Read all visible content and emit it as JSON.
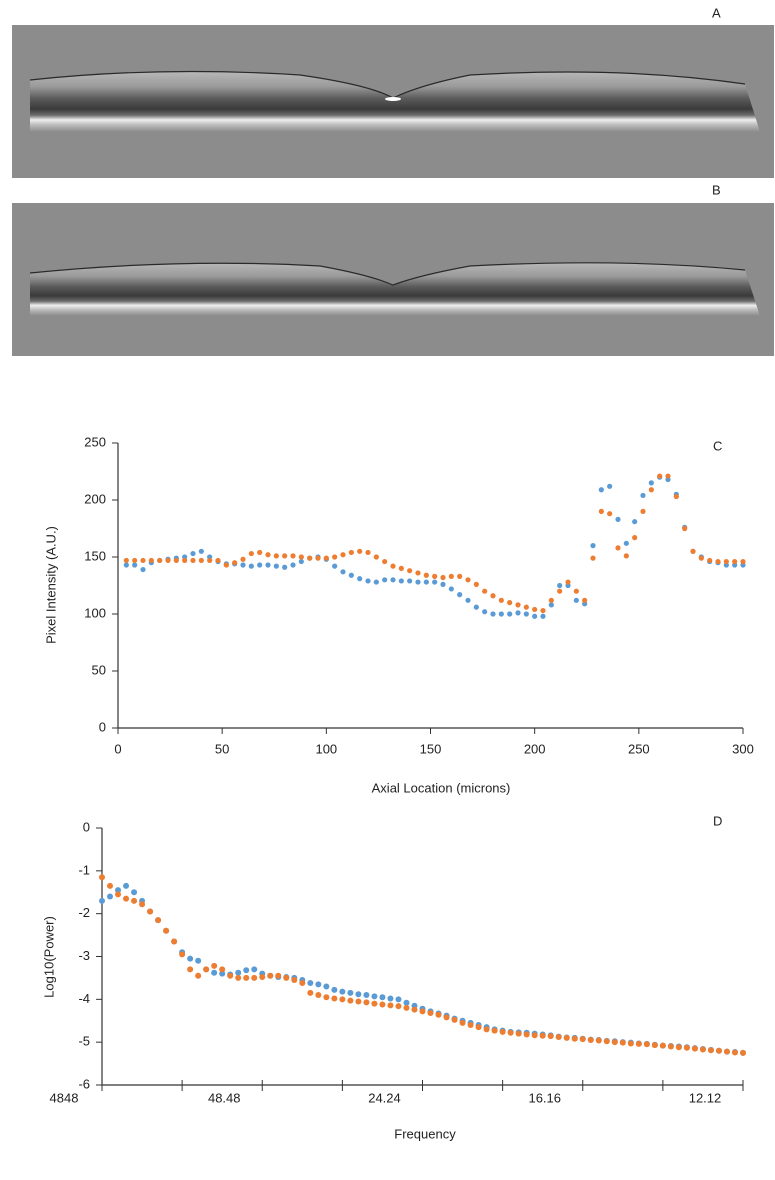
{
  "images": [
    {
      "label": "A"
    },
    {
      "label": "B"
    }
  ],
  "chart_data": [
    {
      "type": "scatter",
      "annotation": "C",
      "x_label": "Axial Location (microns)",
      "y_label": "Pixel Intensity (A.U.)",
      "xlim": [
        0,
        300
      ],
      "xticks": [
        0,
        50,
        100,
        150,
        200,
        250,
        300
      ],
      "ylim": [
        0,
        250
      ],
      "yticks": [
        0,
        50,
        100,
        150,
        200,
        250
      ],
      "x": [
        4,
        8,
        12,
        16,
        20,
        24,
        28,
        32,
        36,
        40,
        44,
        48,
        52,
        56,
        60,
        64,
        68,
        72,
        76,
        80,
        84,
        88,
        92,
        96,
        100,
        104,
        108,
        112,
        116,
        120,
        124,
        128,
        132,
        136,
        140,
        144,
        148,
        152,
        156,
        160,
        164,
        168,
        172,
        176,
        180,
        184,
        188,
        192,
        196,
        200,
        204,
        208,
        212,
        216,
        220,
        224,
        228,
        232,
        236,
        240,
        244,
        248,
        252,
        256,
        260,
        264,
        268,
        272,
        276,
        280,
        284,
        288,
        292,
        296,
        300
      ],
      "series": [
        {
          "color": "#5b9bd5",
          "values": [
            143,
            143,
            139,
            145,
            147,
            148,
            149,
            150,
            153,
            155,
            150,
            146,
            144,
            144,
            143,
            142,
            143,
            143,
            142,
            141,
            143,
            146,
            149,
            150,
            148,
            142,
            137,
            134,
            131,
            129,
            128,
            130,
            130,
            129,
            129,
            128,
            128,
            128,
            126,
            122,
            117,
            112,
            106,
            102,
            100,
            100,
            100,
            101,
            100,
            98,
            98,
            108,
            125,
            125,
            112,
            109,
            160,
            209,
            212,
            183,
            162,
            181,
            204,
            215,
            220,
            218,
            205,
            176,
            155,
            150,
            146,
            145,
            143,
            143,
            143
          ]
        },
        {
          "color": "#ed7d31",
          "values": [
            147,
            147,
            147,
            147,
            147,
            147,
            147,
            147,
            147,
            147,
            147,
            147,
            143,
            145,
            148,
            153,
            154,
            152,
            151,
            151,
            151,
            150,
            149,
            149,
            149,
            150,
            152,
            154,
            155,
            154,
            150,
            146,
            142,
            140,
            138,
            136,
            134,
            133,
            132,
            133,
            133,
            130,
            126,
            120,
            116,
            112,
            110,
            108,
            106,
            104,
            103,
            112,
            120,
            128,
            120,
            112,
            149,
            190,
            188,
            158,
            151,
            167,
            190,
            209,
            221,
            221,
            203,
            175,
            155,
            149,
            147,
            146,
            146,
            146,
            146
          ]
        }
      ]
    },
    {
      "type": "scatter",
      "annotation": "D",
      "x_label": "Frequency",
      "y_label": "Log10(Power)",
      "xlim": [
        0,
        400
      ],
      "xticks": [
        {
          "value": 0,
          "label": "4848"
        },
        {
          "value": 50,
          "label": null
        },
        {
          "value": 100,
          "label": "48.48"
        },
        {
          "value": 150,
          "label": null
        },
        {
          "value": 200,
          "label": "24.24"
        },
        {
          "value": 250,
          "label": null
        },
        {
          "value": 300,
          "label": "16.16"
        },
        {
          "value": 350,
          "label": null
        },
        {
          "value": 400,
          "label": "12.12"
        }
      ],
      "ylim": [
        -6,
        0
      ],
      "yticks": [
        -6,
        -5,
        -4,
        -3,
        -2,
        -1,
        0
      ],
      "x": [
        0,
        5,
        10,
        15,
        20,
        25,
        30,
        35,
        40,
        45,
        50,
        55,
        60,
        65,
        70,
        75,
        80,
        85,
        90,
        95,
        100,
        105,
        110,
        115,
        120,
        125,
        130,
        135,
        140,
        145,
        150,
        155,
        160,
        165,
        170,
        175,
        180,
        185,
        190,
        195,
        200,
        205,
        210,
        215,
        220,
        225,
        230,
        235,
        240,
        245,
        250,
        255,
        260,
        265,
        270,
        275,
        280,
        285,
        290,
        295,
        300,
        305,
        310,
        315,
        320,
        325,
        330,
        335,
        340,
        345,
        350,
        355,
        360,
        365,
        370,
        375,
        380,
        385,
        390,
        395,
        400
      ],
      "series": [
        {
          "color": "#5b9bd5",
          "values": [
            -1.7,
            -1.6,
            -1.45,
            -1.35,
            -1.5,
            -1.7,
            -1.95,
            -2.15,
            -2.4,
            -2.65,
            -2.9,
            -3.05,
            -3.1,
            -3.3,
            -3.38,
            -3.4,
            -3.42,
            -3.38,
            -3.32,
            -3.3,
            -3.4,
            -3.45,
            -3.48,
            -3.48,
            -3.5,
            -3.55,
            -3.62,
            -3.65,
            -3.7,
            -3.78,
            -3.82,
            -3.85,
            -3.88,
            -3.9,
            -3.93,
            -3.95,
            -3.98,
            -4.0,
            -4.08,
            -4.15,
            -4.22,
            -4.28,
            -4.33,
            -4.38,
            -4.45,
            -4.5,
            -4.55,
            -4.6,
            -4.65,
            -4.7,
            -4.73,
            -4.76,
            -4.77,
            -4.78,
            -4.8,
            -4.82,
            -4.84,
            -4.87,
            -4.89,
            -4.9,
            -4.92,
            -4.94,
            -4.95,
            -4.97,
            -4.98,
            -5.0,
            -5.01,
            -5.03,
            -5.04,
            -5.06,
            -5.08,
            -5.09,
            -5.1,
            -5.12,
            -5.14,
            -5.16,
            -5.18,
            -5.2,
            -5.22,
            -5.23,
            -5.25
          ]
        },
        {
          "color": "#ed7d31",
          "values": [
            -1.15,
            -1.35,
            -1.55,
            -1.65,
            -1.7,
            -1.78,
            -1.95,
            -2.15,
            -2.4,
            -2.65,
            -2.95,
            -3.3,
            -3.45,
            -3.3,
            -3.22,
            -3.3,
            -3.45,
            -3.5,
            -3.5,
            -3.5,
            -3.48,
            -3.45,
            -3.45,
            -3.5,
            -3.55,
            -3.62,
            -3.85,
            -3.9,
            -3.95,
            -3.98,
            -4.0,
            -4.03,
            -4.05,
            -4.07,
            -4.1,
            -4.12,
            -4.14,
            -4.16,
            -4.2,
            -4.24,
            -4.28,
            -4.32,
            -4.36,
            -4.42,
            -4.48,
            -4.55,
            -4.6,
            -4.65,
            -4.7,
            -4.73,
            -4.76,
            -4.78,
            -4.8,
            -4.82,
            -4.84,
            -4.85,
            -4.86,
            -4.88,
            -4.9,
            -4.92,
            -4.93,
            -4.95,
            -4.96,
            -4.98,
            -5.0,
            -5.01,
            -5.03,
            -5.04,
            -5.05,
            -5.07,
            -5.08,
            -5.1,
            -5.12,
            -5.13,
            -5.15,
            -5.17,
            -5.19,
            -5.2,
            -5.22,
            -5.24,
            -5.25
          ]
        }
      ]
    }
  ]
}
